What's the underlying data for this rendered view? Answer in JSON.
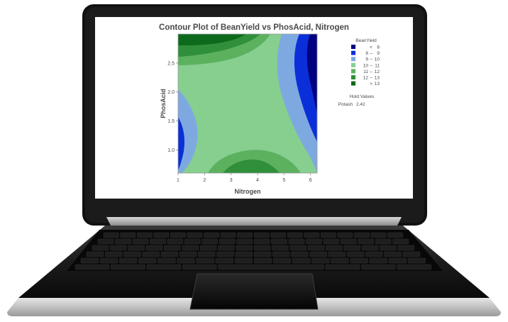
{
  "chart_data": {
    "type": "heatmap",
    "title": "Contour Plot of BeanYield vs PhosAcid, Nitrogen",
    "xlabel": "Nitrogen",
    "ylabel": "PhosAcid",
    "xlim": [
      1.0,
      6.25
    ],
    "ylim": [
      0.6,
      3.0
    ],
    "x_ticks": [
      "1",
      "2",
      "3",
      "4",
      "5",
      "6"
    ],
    "y_ticks": [
      "1.0",
      "1.5",
      "2.0",
      "2.5"
    ],
    "grid": false,
    "legend_position": "right",
    "legend": {
      "title": "BeanYield",
      "entries": [
        {
          "op": "<",
          "lo": "",
          "hi": "8",
          "color": "#000080"
        },
        {
          "op": "–",
          "lo": "8",
          "hi": "9",
          "color": "#0a2fd8"
        },
        {
          "op": "–",
          "lo": "9",
          "hi": "10",
          "color": "#7ea9e0"
        },
        {
          "op": "–",
          "lo": "10",
          "hi": "11",
          "color": "#86cf8f"
        },
        {
          "op": "–",
          "lo": "11",
          "hi": "12",
          "color": "#5cb15f"
        },
        {
          "op": "–",
          "lo": "12",
          "hi": "13",
          "color": "#2f8f3a"
        },
        {
          "op": ">",
          "lo": "",
          "hi": "13",
          "color": "#0d6a1c"
        }
      ]
    },
    "hold_values": {
      "title": "Hold Values",
      "variable": "Potash",
      "value": "2.42"
    }
  }
}
